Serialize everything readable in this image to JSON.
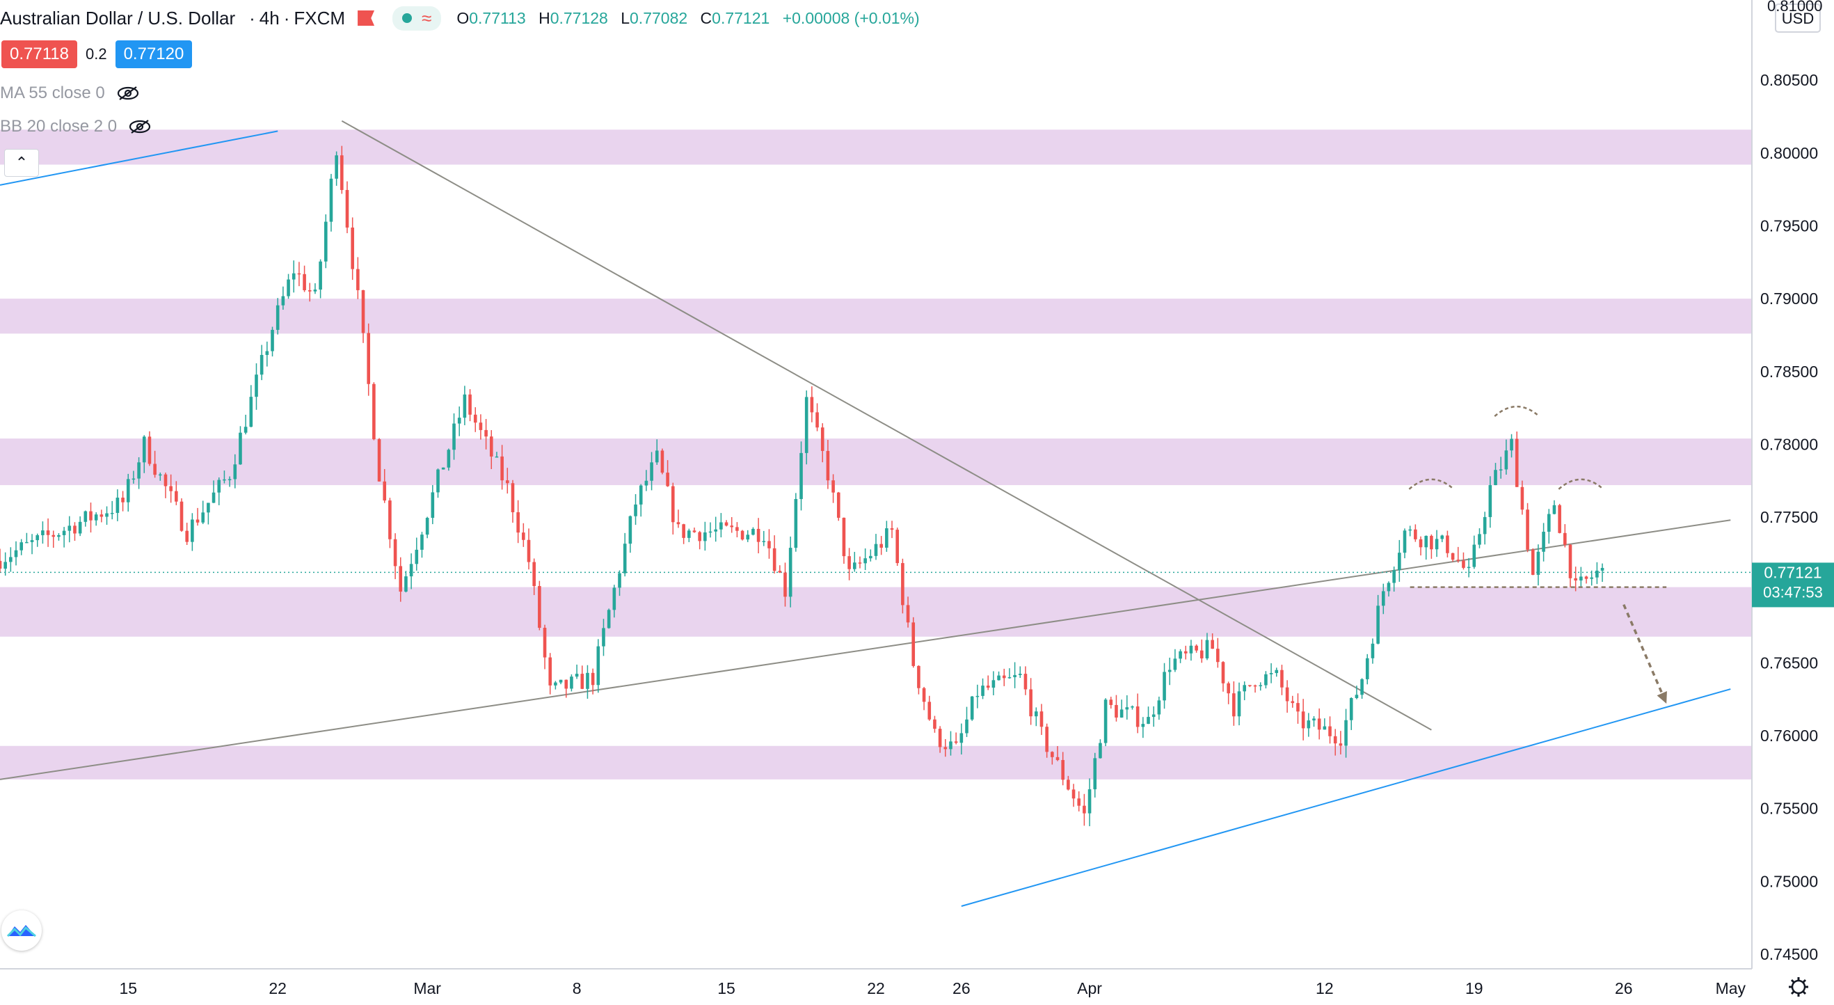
{
  "header": {
    "symbol": "Australian Dollar / U.S. Dollar",
    "interval": "4h",
    "exchange": "FXCM",
    "open_label": "O",
    "open": "0.77113",
    "high_label": "H",
    "high": "0.77128",
    "low_label": "L",
    "low": "0.77082",
    "close_label": "C",
    "close": "0.77121",
    "change": "+0.00008 (+0.01%)"
  },
  "trade": {
    "sell_price": "0.77118",
    "spread": "0.2",
    "buy_price": "0.77120"
  },
  "indicators": [
    {
      "label": "MA 55 close 0",
      "icon": "eye-hidden-icon"
    },
    {
      "label": "BB 20 close 2 0",
      "icon": "eye-hidden-icon"
    }
  ],
  "price_axis": {
    "currency": "USD",
    "top_partial": "0.81000",
    "current_price": "0.77121",
    "countdown": "03:47:53"
  },
  "colors": {
    "up": "#26a69a",
    "down": "#ef5350",
    "zone": "#e1c6e8",
    "trend_gray": "#8d8d86",
    "channel_blue": "#2196f3",
    "arrow_brown": "#8a7a66"
  },
  "chart_data": {
    "type": "candlestick",
    "ylim": [
      0.744,
      0.8105
    ],
    "yticks": [
      "0.74500",
      "0.75000",
      "0.75500",
      "0.76000",
      "0.76500",
      "0.77000",
      "0.77500",
      "0.78000",
      "0.78500",
      "0.79000",
      "0.79500",
      "0.80000",
      "0.80500"
    ],
    "xticks": [
      "15",
      "22",
      "Mar",
      "8",
      "15",
      "22",
      "26",
      "Apr",
      "12",
      "19",
      "26",
      "May"
    ],
    "x_range": [
      "2021-02-09",
      "2021-05-02"
    ],
    "zones": [
      [
        0.7992,
        0.8016
      ],
      [
        0.7876,
        0.79
      ],
      [
        0.7772,
        0.7804
      ],
      [
        0.7668,
        0.7702
      ],
      [
        0.757,
        0.7593
      ]
    ],
    "key_points": [
      [
        "2021-02-09",
        0.772
      ],
      [
        "2021-02-15",
        0.776
      ],
      [
        "2021-02-16",
        0.78
      ],
      [
        "2021-02-18",
        0.774
      ],
      [
        "2021-02-20",
        0.778
      ],
      [
        "2021-02-22",
        0.788
      ],
      [
        "2021-02-23",
        0.792
      ],
      [
        "2021-02-24",
        0.79
      ],
      [
        "2021-02-25",
        0.8005
      ],
      [
        "2021-02-26",
        0.79
      ],
      [
        "2021-02-27",
        0.778
      ],
      [
        "2021-02-28",
        0.77
      ],
      [
        "2021-03-03",
        0.783
      ],
      [
        "2021-03-05",
        0.777
      ],
      [
        "2021-03-06",
        0.772
      ],
      [
        "2021-03-07",
        0.763
      ],
      [
        "2021-03-09",
        0.764
      ],
      [
        "2021-03-10",
        0.77
      ],
      [
        "2021-03-11",
        0.776
      ],
      [
        "2021-03-12",
        0.779
      ],
      [
        "2021-03-13",
        0.774
      ],
      [
        "2021-03-15",
        0.774
      ],
      [
        "2021-03-17",
        0.774
      ],
      [
        "2021-03-18",
        0.77
      ],
      [
        "2021-03-19",
        0.783
      ],
      [
        "2021-03-20",
        0.778
      ],
      [
        "2021-03-21",
        0.771
      ],
      [
        "2021-03-23",
        0.774
      ],
      [
        "2021-03-24",
        0.765
      ],
      [
        "2021-03-25",
        0.76
      ],
      [
        "2021-03-26",
        0.759
      ],
      [
        "2021-03-27",
        0.763
      ],
      [
        "2021-03-29",
        0.764
      ],
      [
        "2021-03-30",
        0.76
      ],
      [
        "2021-04-01",
        0.7545
      ],
      [
        "2021-04-02",
        0.762
      ],
      [
        "2021-04-04",
        0.761
      ],
      [
        "2021-04-05",
        0.765
      ],
      [
        "2021-04-07",
        0.766
      ],
      [
        "2021-04-08",
        0.762
      ],
      [
        "2021-04-09",
        0.764
      ],
      [
        "2021-04-10",
        0.764
      ],
      [
        "2021-04-11",
        0.761
      ],
      [
        "2021-04-13",
        0.76
      ],
      [
        "2021-04-14",
        0.764
      ],
      [
        "2021-04-15",
        0.77
      ],
      [
        "2021-04-16",
        0.774
      ],
      [
        "2021-04-18",
        0.773
      ],
      [
        "2021-04-19",
        0.771
      ],
      [
        "2021-04-20",
        0.777
      ],
      [
        "2021-04-21",
        0.78
      ],
      [
        "2021-04-22",
        0.771
      ],
      [
        "2021-04-23",
        0.776
      ],
      [
        "2021-04-24",
        0.77
      ],
      [
        "2021-04-25",
        0.7712
      ]
    ],
    "lines": [
      {
        "from": [
          "2021-02-09",
          0.7978
        ],
        "to": [
          "2021-02-22",
          0.8015
        ],
        "color": "channel_blue"
      },
      {
        "from": [
          "2021-03-26",
          0.7483
        ],
        "to": [
          "2021-05-01",
          0.7632
        ],
        "color": "channel_blue"
      },
      {
        "from": [
          "2021-02-25",
          0.8022
        ],
        "to": [
          "2021-04-17",
          0.7604
        ],
        "color": "trend_gray"
      },
      {
        "from": [
          "2021-02-09",
          0.757
        ],
        "to": [
          "2021-05-01",
          0.7748
        ],
        "color": "trend_gray"
      }
    ],
    "neckline": {
      "from": [
        "2021-04-16",
        0.7702
      ],
      "to": [
        "2021-04-28",
        0.7702
      ]
    },
    "shoulders": [
      [
        "2021-04-17",
        0.7775
      ],
      [
        "2021-04-21",
        0.7825
      ],
      [
        "2021-04-24",
        0.7775
      ]
    ],
    "arrow": {
      "from": [
        "2021-04-26",
        0.769
      ],
      "to": [
        "2021-04-28",
        0.7622
      ]
    }
  }
}
